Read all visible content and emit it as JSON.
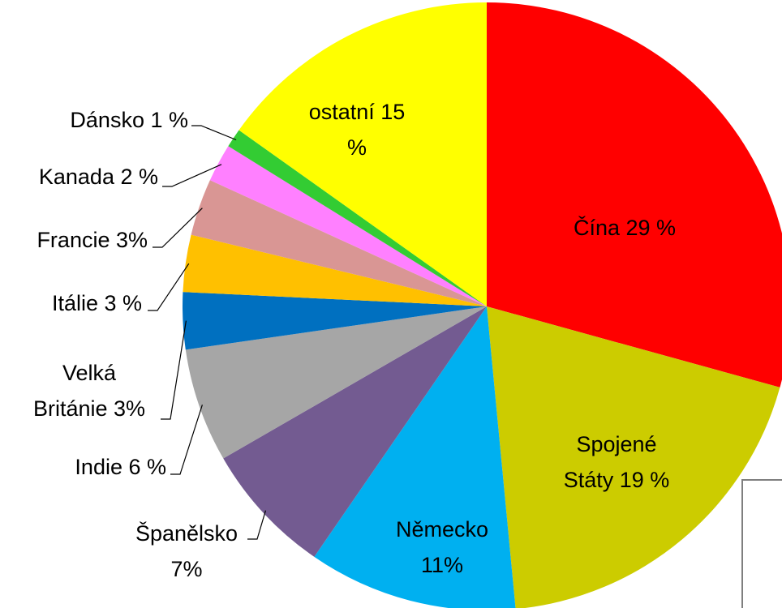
{
  "chart_data": {
    "type": "pie",
    "labels": [
      [
        "Čína 29 %"
      ],
      [
        "Spojené",
        "Státy 19 %"
      ],
      [
        "Německo",
        "11%"
      ],
      [
        "Španělsko",
        "7%"
      ],
      [
        "Indie 6 %"
      ],
      [
        "Velká",
        "Británie 3%"
      ],
      [
        "Itálie 3 %"
      ],
      [
        "Francie 3%"
      ],
      [
        "Kanada 2 %"
      ],
      [
        "Dánsko 1 %"
      ],
      [
        "ostatní 15",
        "%"
      ]
    ],
    "values": [
      29,
      19,
      11,
      7,
      6,
      3,
      3,
      3,
      2,
      1,
      15
    ],
    "colors": [
      "#ff0000",
      "#cccc00",
      "#00b0f0",
      "#735b91",
      "#a6a6a6",
      "#0070c0",
      "#ffc000",
      "#d99694",
      "#ff80ff",
      "#33cc33",
      "#ffff00"
    ]
  }
}
